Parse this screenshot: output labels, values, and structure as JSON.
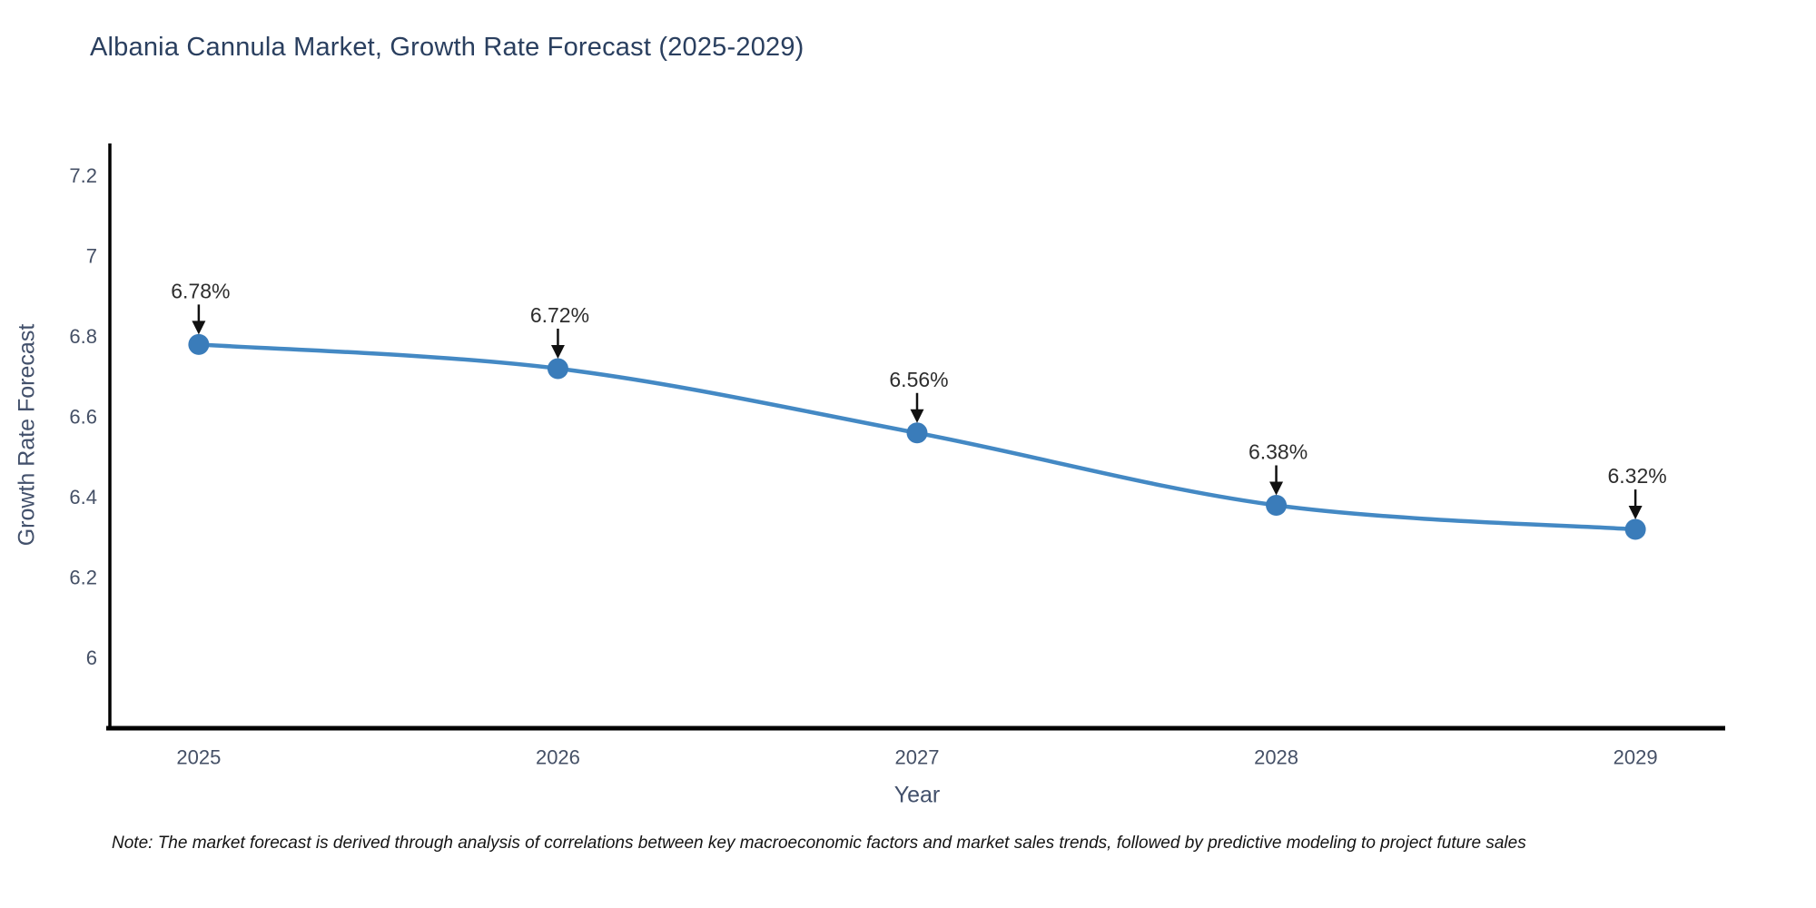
{
  "page": {
    "background": "#ffffff"
  },
  "chart_data": {
    "type": "line",
    "title": "Albania Cannula Market, Growth Rate Forecast (2025-2029)",
    "xlabel": "Year",
    "ylabel": "Growth Rate Forecast",
    "x": [
      2025,
      2026,
      2027,
      2028,
      2029
    ],
    "xtick_labels": [
      "2025",
      "2026",
      "2027",
      "2028",
      "2029"
    ],
    "series": [
      {
        "name": "Growth Rate Forecast",
        "values": [
          6.78,
          6.72,
          6.56,
          6.38,
          6.32
        ]
      }
    ],
    "point_labels": [
      "6.78%",
      "6.72%",
      "6.56%",
      "6.38%",
      "6.32%"
    ],
    "yticks": [
      6,
      6.2,
      6.4,
      6.6,
      6.8,
      7,
      7.2
    ],
    "ytick_labels": [
      "6",
      "6.2",
      "6.4",
      "6.6",
      "6.8",
      "7",
      "7.2"
    ],
    "xlim": [
      2024.75,
      2029.25
    ],
    "ylim": [
      5.83,
      7.28
    ],
    "grid": false,
    "legend": false,
    "line_shape": "spline",
    "colors": {
      "line": "#4489c4",
      "marker": "#3a7cba",
      "annotation_text": "#2d2d2d",
      "annotation_arrow": "#111111",
      "axis_line": "#000000",
      "tick_label": "#455066",
      "axis_title": "#42506b",
      "title": "#2a3f5f",
      "note": "#141414"
    }
  },
  "note": {
    "text": "Note: The market forecast is derived through analysis of correlations between key macroeconomic factors and market sales trends, followed by predictive modeling to project future sales"
  }
}
